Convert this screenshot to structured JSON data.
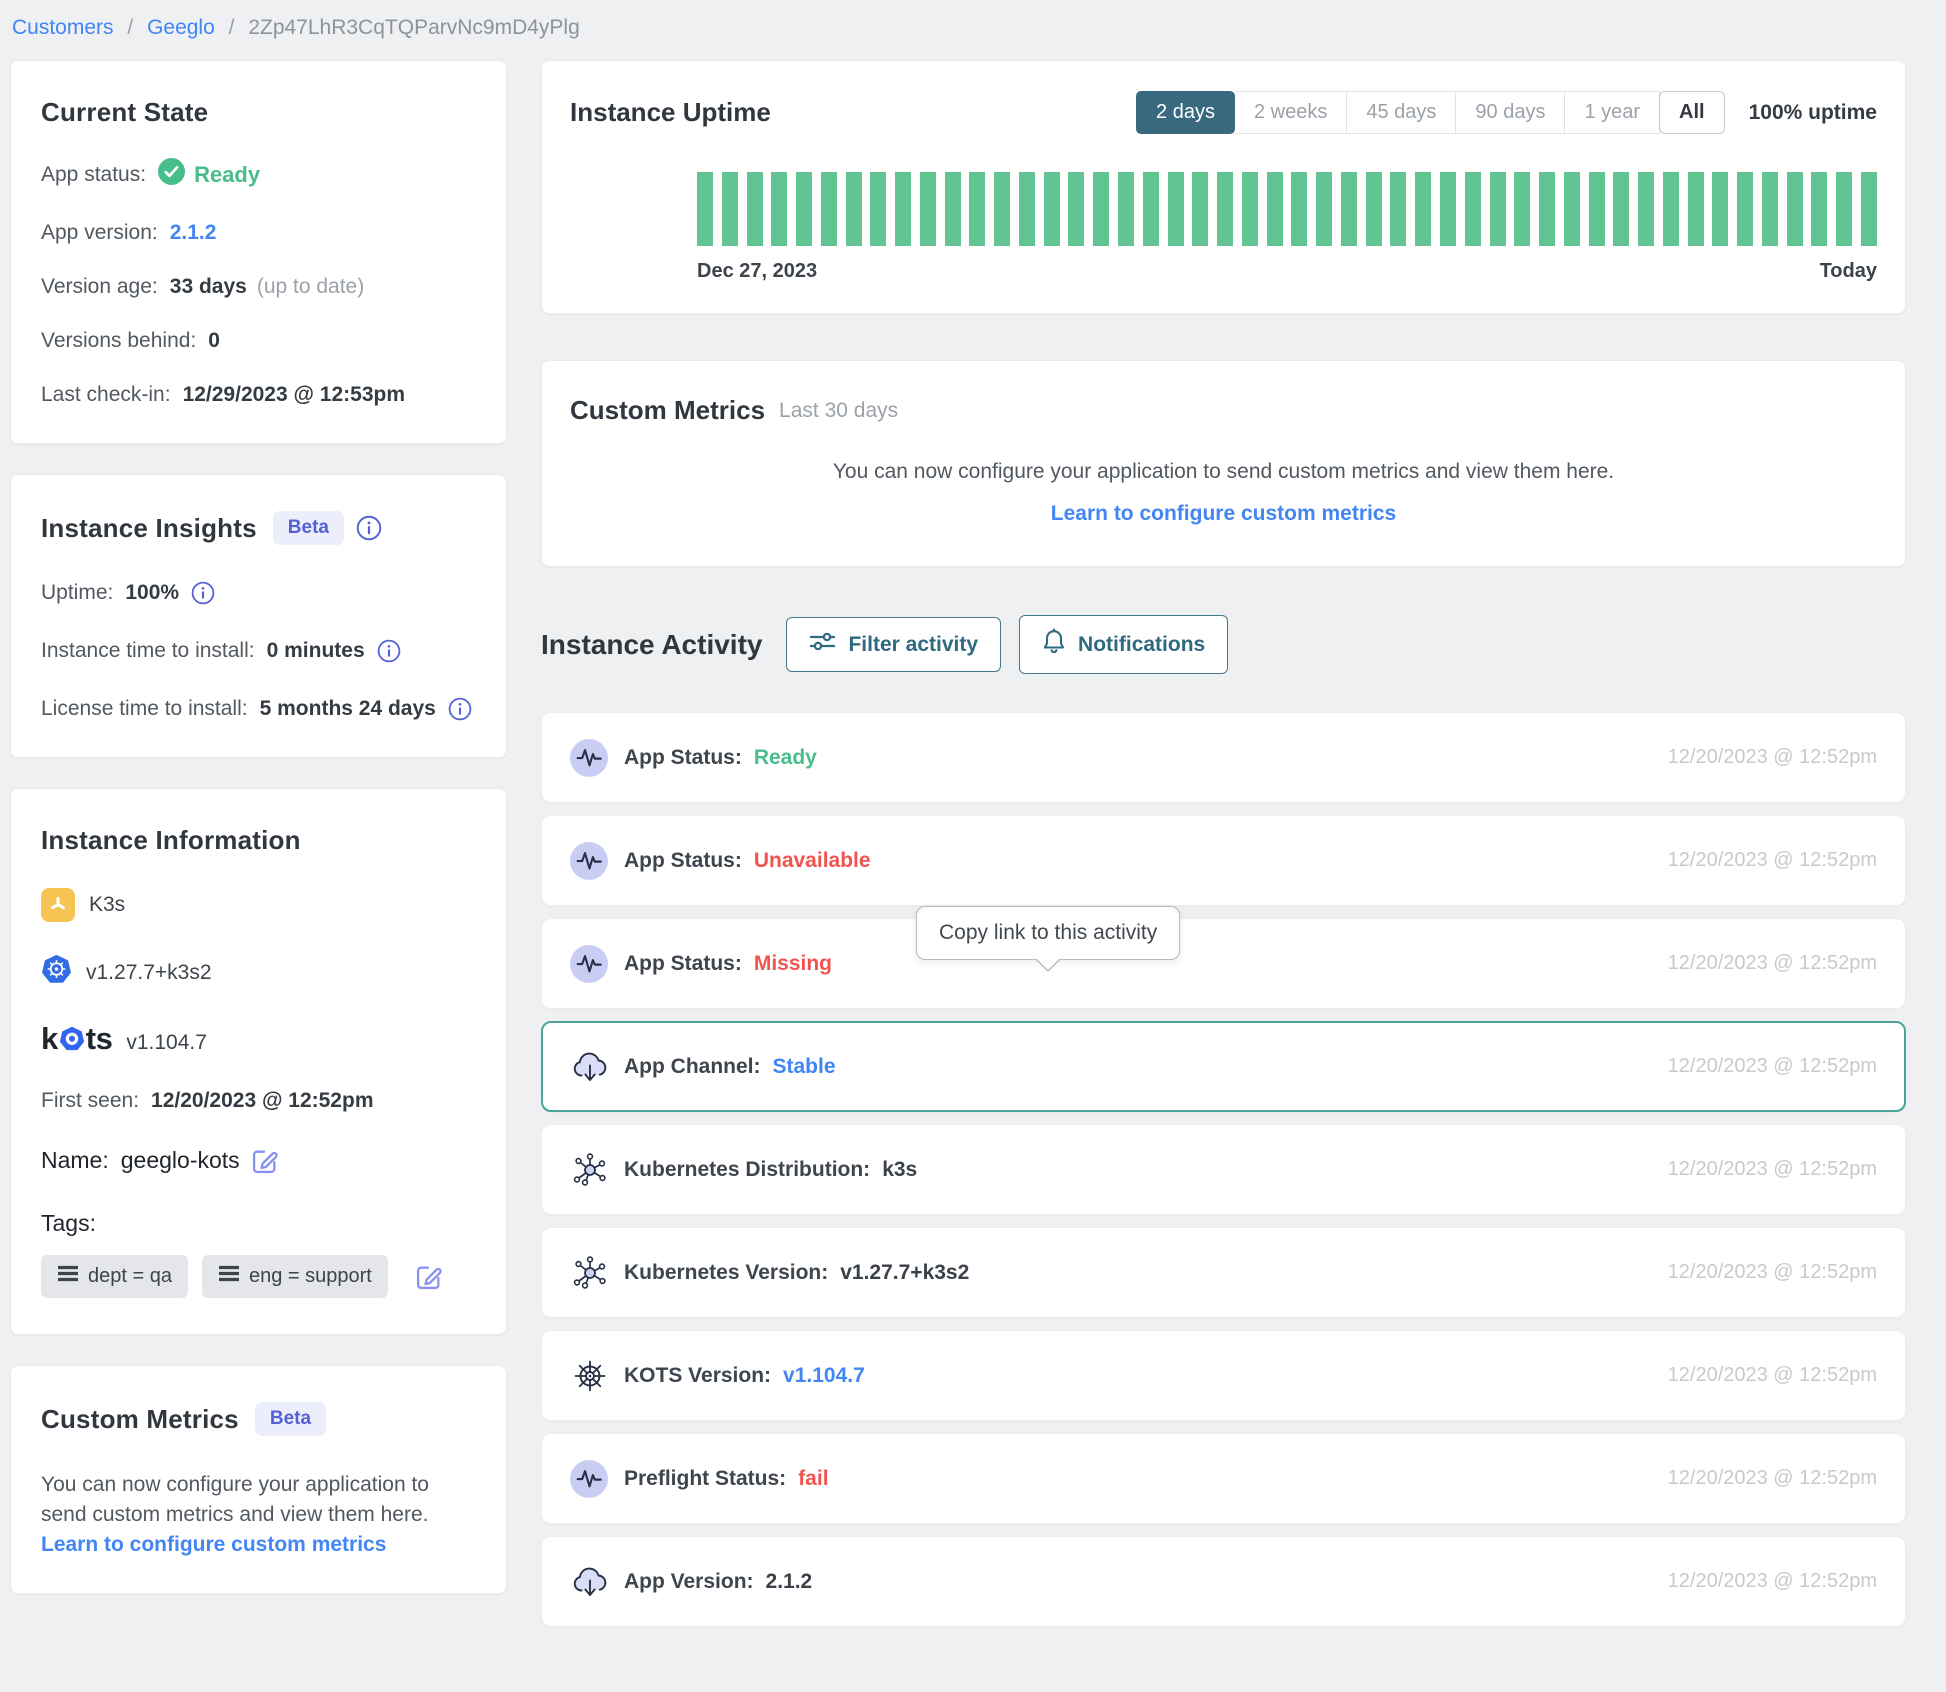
{
  "breadcrumb": {
    "separator": "/",
    "items": [
      "Customers",
      "Geeglo",
      "2Zp47LhR3CqTQParvNc9mD4yPlg"
    ]
  },
  "current_state": {
    "title": "Current State",
    "app_status_label": "App status:",
    "app_status_value": "Ready",
    "app_version_label": "App version:",
    "app_version_value": "2.1.2",
    "version_age_label": "Version age:",
    "version_age_value": "33 days",
    "version_age_note": "(up to date)",
    "versions_behind_label": "Versions behind:",
    "versions_behind_value": "0",
    "last_checkin_label": "Last check-in:",
    "last_checkin_value": "12/29/2023 @ 12:53pm"
  },
  "instance_insights": {
    "title": "Instance Insights",
    "beta_badge": "Beta",
    "uptime_label": "Uptime:",
    "uptime_value": "100%",
    "instance_time_label": "Instance time to install:",
    "instance_time_value": "0 minutes",
    "license_time_label": "License time to install:",
    "license_time_value": "5 months 24 days"
  },
  "instance_information": {
    "title": "Instance Information",
    "distribution_name": "K3s",
    "kubernetes_version": "v1.27.7+k3s2",
    "kots_logo_k": "k",
    "kots_logo_o": "o",
    "kots_logo_ts": "ts",
    "kots_version": "v1.104.7",
    "first_seen_label": "First seen:",
    "first_seen_value": "12/20/2023 @ 12:52pm",
    "name_label": "Name:",
    "name_value": "geeglo-kots",
    "tags_label": "Tags:",
    "tags": [
      "dept = qa",
      "eng = support"
    ]
  },
  "custom_metrics_card": {
    "title": "Custom Metrics",
    "beta_badge": "Beta",
    "body": "You can now configure your application to send custom metrics and view them here.",
    "link": "Learn to configure custom metrics"
  },
  "instance_uptime": {
    "title": "Instance Uptime",
    "tabs": [
      "2 days",
      "2 weeks",
      "45 days",
      "90 days",
      "1 year",
      "All"
    ],
    "selected_tab": "2 days",
    "uptime_summary": "100% uptime",
    "chart_data": {
      "type": "bar",
      "description": "uptime status per interval, all intervals fully up",
      "bar_count": 48,
      "values_percent_up": 100,
      "bar_color": "#63c493",
      "start_label": "Dec 27, 2023",
      "end_label": "Today"
    }
  },
  "custom_metrics_panel": {
    "title": "Custom Metrics",
    "subtitle": "Last 30 days",
    "body": "You can now configure your application to send custom metrics and view them here.",
    "link": "Learn to configure custom metrics"
  },
  "instance_activity": {
    "title": "Instance Activity",
    "filter_button": "Filter activity",
    "notifications_button": "Notifications",
    "tooltip": "Copy link to this activity",
    "events": [
      {
        "icon": "pulse",
        "label": "App Status:",
        "value": "Ready",
        "value_color": "green",
        "timestamp": "12/20/2023 @ 12:52pm",
        "selected": false
      },
      {
        "icon": "pulse",
        "label": "App Status:",
        "value": "Unavailable",
        "value_color": "red",
        "timestamp": "12/20/2023 @ 12:52pm",
        "selected": false
      },
      {
        "icon": "pulse",
        "label": "App Status:",
        "value": "Missing",
        "value_color": "red",
        "timestamp": "12/20/2023 @ 12:52pm",
        "selected": false
      },
      {
        "icon": "cloud",
        "label": "App Channel:",
        "value": "Stable",
        "value_color": "blue",
        "timestamp": "12/20/2023 @ 12:52pm",
        "selected": true
      },
      {
        "icon": "nodes",
        "label": "Kubernetes Distribution:",
        "value": "k3s",
        "value_color": "dark",
        "timestamp": "12/20/2023 @ 12:52pm",
        "selected": false
      },
      {
        "icon": "nodes",
        "label": "Kubernetes Version:",
        "value": "v1.27.7+k3s2",
        "value_color": "dark",
        "timestamp": "12/20/2023 @ 12:52pm",
        "selected": false
      },
      {
        "icon": "helm",
        "label": "KOTS Version:",
        "value": "v1.104.7",
        "value_color": "blue",
        "timestamp": "12/20/2023 @ 12:52pm",
        "selected": false
      },
      {
        "icon": "pulse",
        "label": "Preflight Status:",
        "value": "fail",
        "value_color": "red",
        "timestamp": "12/20/2023 @ 12:52pm",
        "selected": false
      },
      {
        "icon": "cloud",
        "label": "App Version:",
        "value": "2.1.2",
        "value_color": "dark",
        "timestamp": "12/20/2023 @ 12:52pm",
        "selected": false
      }
    ]
  },
  "colors": {
    "page_background": "#eef0f2",
    "accent_teal": "#38697e",
    "selected_row_border": "#4ba39a",
    "uptime_bar_green": "#63c493",
    "status_green": "#47bd8c",
    "status_red": "#f0544f",
    "link_blue": "#4285f5",
    "beta_indigo": "#5560d5",
    "icon_circle_purple": "#c9cdf4",
    "k3s_yellow": "#f6c453",
    "kubernetes_blue": "#326ce5"
  }
}
